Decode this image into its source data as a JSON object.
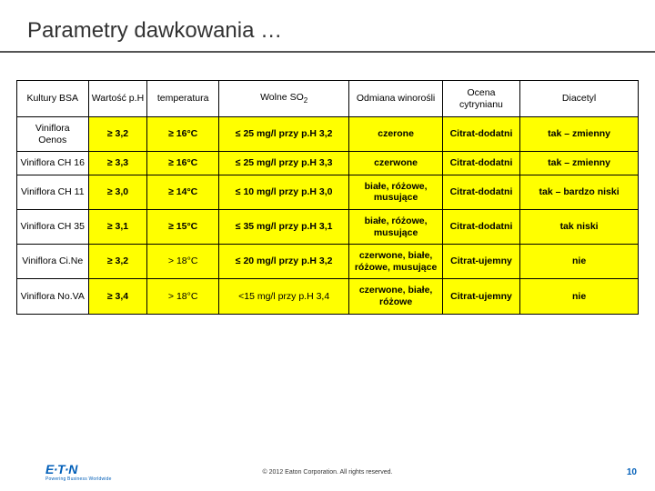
{
  "title": "Parametry dawkowania …",
  "title_color": "#333333",
  "title_fontsize": 24,
  "underline_color": "#555555",
  "table": {
    "highlight_color": "#ffff00",
    "border_color": "#000000",
    "column_widths_pct": [
      11.5,
      9.5,
      11.5,
      21,
      15,
      12.5,
      19
    ],
    "columns": [
      "Kultury BSA",
      "Wartość p.H",
      "temperatura",
      "Wolne SO₂",
      "Odmiana winorośli",
      "Ocena cytrynianu",
      "Diacetyl"
    ],
    "rows": [
      {
        "head": "Viniflora Oenos",
        "cells": [
          {
            "text": "≥ 3,2",
            "bold": true
          },
          {
            "text": "≥ 16°C",
            "bold": true
          },
          {
            "text": "≤ 25 mg/l przy p.H 3,2",
            "bold": true
          },
          {
            "text": "czerone",
            "bold": true
          },
          {
            "text": "Citrat-dodatni",
            "bold": true
          },
          {
            "text": "tak – zmienny",
            "bold": true
          }
        ]
      },
      {
        "head": "Viniflora CH 16",
        "cells": [
          {
            "text": "≥ 3,3",
            "bold": true
          },
          {
            "text": "≥ 16°C",
            "bold": true
          },
          {
            "text": "≤ 25 mg/l przy p.H 3,3",
            "bold": true
          },
          {
            "text": "czerwone",
            "bold": true
          },
          {
            "text": "Citrat-dodatni",
            "bold": true
          },
          {
            "text": "tak – zmienny",
            "bold": true
          }
        ]
      },
      {
        "head": "Viniflora CH 11",
        "cells": [
          {
            "text": "≥ 3,0",
            "bold": true
          },
          {
            "text": "≥ 14°C",
            "bold": true
          },
          {
            "text": "≤ 10 mg/l przy p.H 3,0",
            "bold": true
          },
          {
            "text": "białe, różowe, musujące",
            "bold": true
          },
          {
            "text": "Citrat-dodatni",
            "bold": true
          },
          {
            "text": "tak – bardzo niski",
            "bold": true
          }
        ]
      },
      {
        "head": "Viniflora CH 35",
        "cells": [
          {
            "text": "≥ 3,1",
            "bold": true
          },
          {
            "text": "≥ 15°C",
            "bold": true
          },
          {
            "text": "≤ 35 mg/l przy p.H 3,1",
            "bold": true
          },
          {
            "text": "białe, różowe, musujące",
            "bold": true
          },
          {
            "text": "Citrat-dodatni",
            "bold": true
          },
          {
            "text": "tak niski",
            "bold": true
          }
        ]
      },
      {
        "head": "Viniflora Ci.Ne",
        "cells": [
          {
            "text": "≥ 3,2",
            "bold": true
          },
          {
            "text": "> 18°C",
            "bold": false
          },
          {
            "text": "≤ 20 mg/l przy p.H 3,2",
            "bold": true
          },
          {
            "text": "czerwone, białe, różowe, musujące",
            "bold": true
          },
          {
            "text": "Citrat-ujemny",
            "bold": true
          },
          {
            "text": "nie",
            "bold": true
          }
        ]
      },
      {
        "head": "Viniflora No.VA",
        "cells": [
          {
            "text": "≥ 3,4",
            "bold": true
          },
          {
            "text": "> 18°C",
            "bold": false
          },
          {
            "text": "<15 mg/l przy p.H 3,4",
            "bold": false
          },
          {
            "text": "czerwone, białe, różowe",
            "bold": true
          },
          {
            "text": "Citrat-ujemny",
            "bold": true
          },
          {
            "text": "nie",
            "bold": true
          }
        ]
      }
    ]
  },
  "footer": {
    "logo_main": "E·T·N",
    "logo_tag": "Powering Business Worldwide",
    "logo_color": "#005eb8",
    "copyright": "© 2012 Eaton Corporation. All rights reserved.",
    "page_number": "10"
  }
}
